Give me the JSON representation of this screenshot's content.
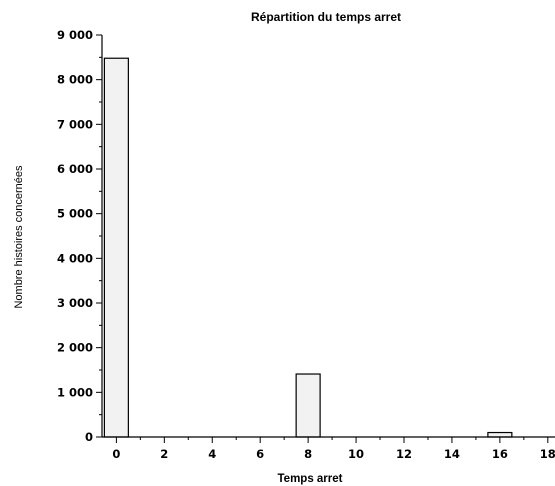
{
  "chart_data": {
    "type": "bar",
    "title": "Répartition du temps arret",
    "xlabel": "Temps arret",
    "ylabel": "Nombre histoires concernées",
    "x": [
      0,
      8,
      16
    ],
    "values": [
      8480,
      1410,
      100
    ],
    "bar_width": 1,
    "xlim": [
      -0.6,
      18.3
    ],
    "ylim": [
      0,
      9000
    ],
    "x_ticks": [
      0,
      2,
      4,
      6,
      8,
      10,
      12,
      14,
      16,
      18
    ],
    "x_tick_labels": [
      "0",
      "2",
      "4",
      "6",
      "8",
      "10",
      "12",
      "14",
      "16",
      "18"
    ],
    "y_ticks": [
      0,
      1000,
      2000,
      3000,
      4000,
      5000,
      6000,
      7000,
      8000,
      9000
    ],
    "y_tick_labels": [
      "0",
      "1 000",
      "2 000",
      "3 000",
      "4 000",
      "5 000",
      "6 000",
      "7 000",
      "8 000",
      "9 000"
    ],
    "y_minor_step": 500,
    "x_minor_step": 1,
    "grid": false,
    "legend": "none",
    "bar_fill": "#f2f2f2",
    "bar_stroke": "#000000"
  }
}
